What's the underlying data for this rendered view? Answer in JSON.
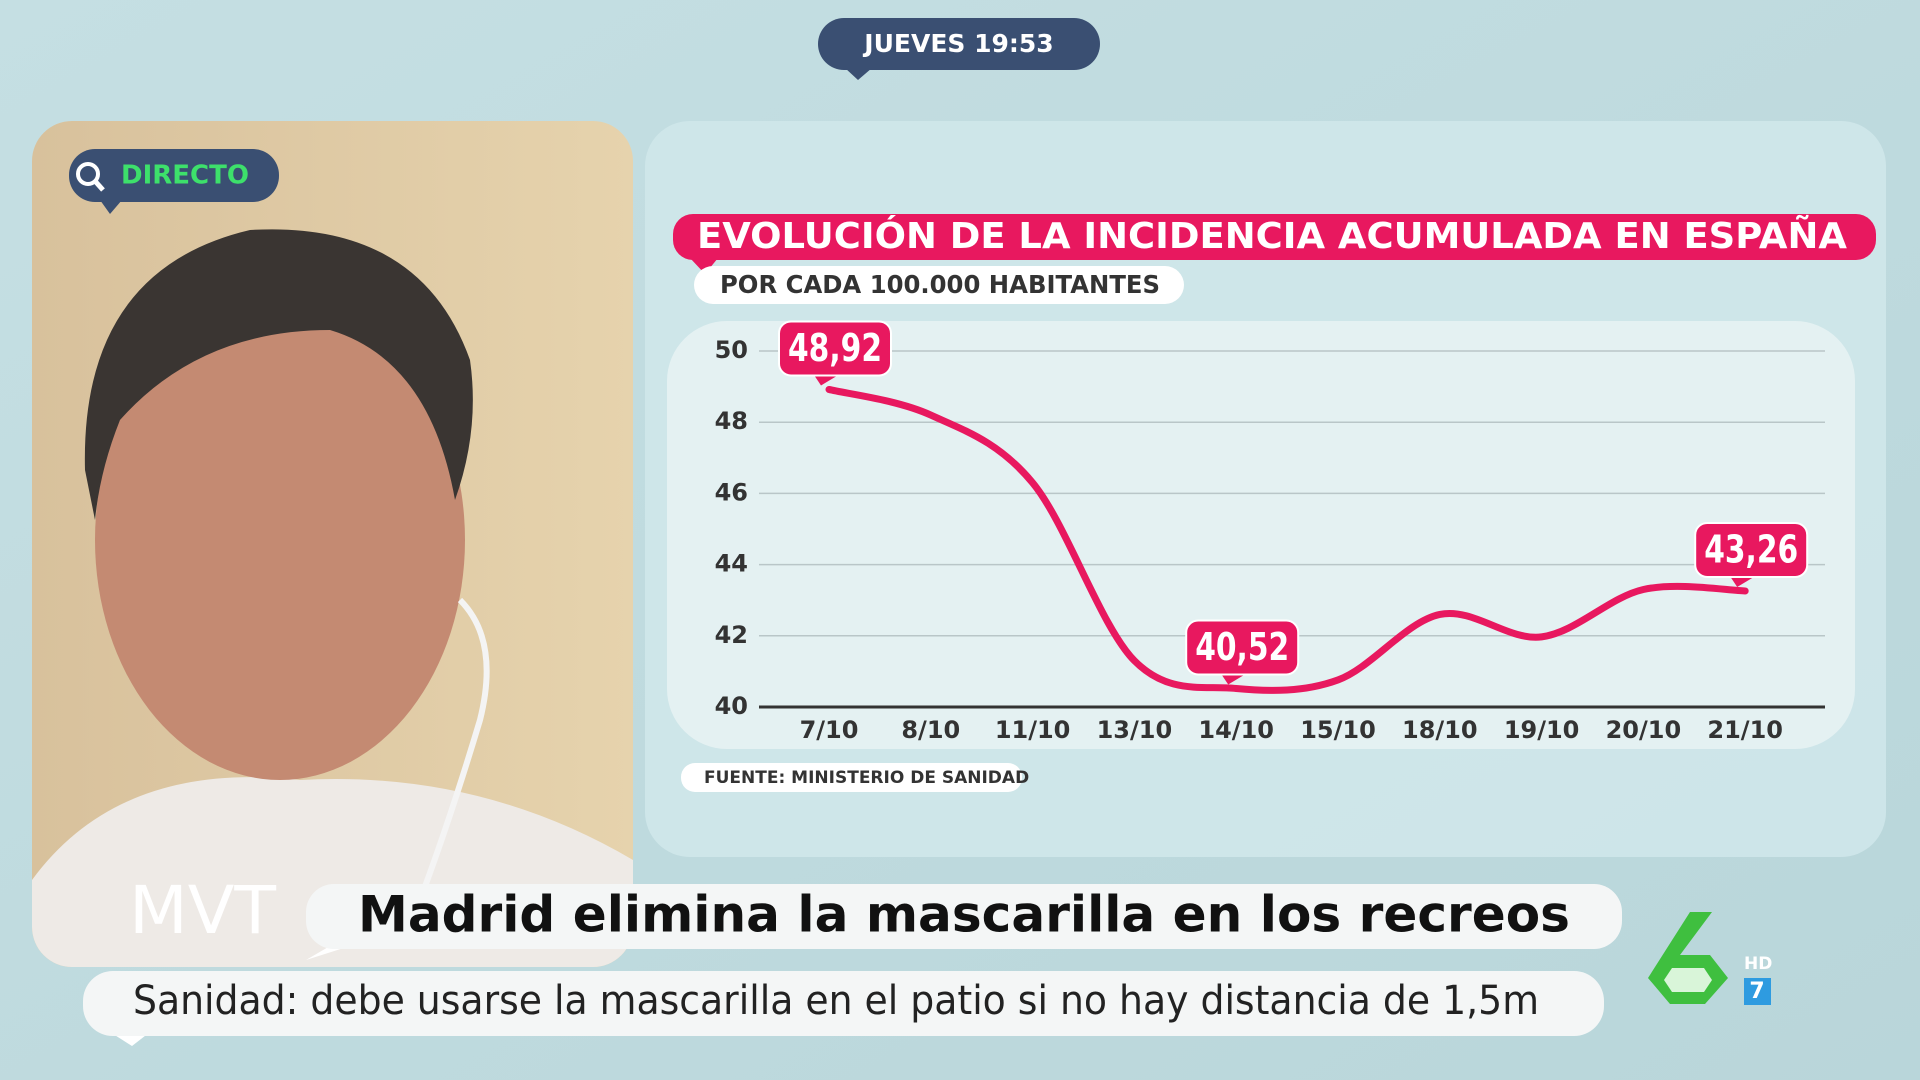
{
  "clock": "JUEVES 19:53",
  "live": "DIRECTO",
  "logo": "MVT",
  "headline": "Madrid elimina la mascarilla en los recreos",
  "subheadline": "Sanidad: debe usarse la mascarilla en el patio si no hay distancia de 1,5m",
  "channel": {
    "badge": "HD",
    "number": "7"
  },
  "chart_data": {
    "type": "line",
    "title": "EVOLUCIÓN DE LA INCIDENCIA ACUMULADA EN ESPAÑA",
    "subtitle": "POR CADA 100.000 HABITANTES",
    "source": "FUENTE: MINISTERIO DE SANIDAD",
    "categories": [
      "7/10",
      "8/10",
      "11/10",
      "13/10",
      "14/10",
      "15/10",
      "18/10",
      "19/10",
      "20/10",
      "21/10"
    ],
    "values": [
      48.92,
      48.2,
      46.3,
      41.3,
      40.52,
      40.76,
      42.6,
      41.97,
      43.3,
      43.26
    ],
    "value_labels": [
      "48,92",
      null,
      null,
      null,
      "40,52",
      null,
      null,
      null,
      null,
      "43,26"
    ],
    "color": "#e8185f",
    "ylim": [
      40,
      50
    ],
    "yticks": [
      40,
      42,
      44,
      46,
      48,
      50
    ],
    "grid": true
  }
}
